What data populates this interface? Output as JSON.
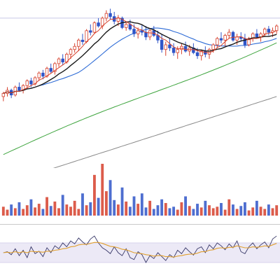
{
  "chart_data": [
    {
      "type": "candlestick",
      "panel": "price",
      "colors": {
        "up": "#d6402c",
        "down": "#2f55c8",
        "ma_fast": "#d6402c",
        "ma_mid": "#1a1a1a",
        "ma_slow": "#2d6bd6",
        "ma_long": "#3fa53f",
        "ma_longest": "#8a8a8a"
      },
      "grid": true,
      "ylim": [
        0,
        100
      ],
      "reference_line": 92,
      "candles": [
        [
          42,
          45,
          39,
          44
        ],
        [
          44,
          48,
          42,
          46
        ],
        [
          46,
          47,
          41,
          43
        ],
        [
          43,
          49,
          42,
          48
        ],
        [
          48,
          51,
          45,
          46
        ],
        [
          46,
          50,
          44,
          49
        ],
        [
          49,
          53,
          47,
          52
        ],
        [
          52,
          54,
          48,
          50
        ],
        [
          50,
          55,
          49,
          54
        ],
        [
          54,
          58,
          52,
          57
        ],
        [
          57,
          59,
          53,
          55
        ],
        [
          55,
          61,
          54,
          60
        ],
        [
          60,
          63,
          57,
          58
        ],
        [
          58,
          64,
          56,
          63
        ],
        [
          63,
          67,
          61,
          66
        ],
        [
          66,
          69,
          62,
          64
        ],
        [
          64,
          70,
          63,
          69
        ],
        [
          69,
          73,
          66,
          72
        ],
        [
          72,
          76,
          70,
          74
        ],
        [
          74,
          79,
          71,
          78
        ],
        [
          78,
          82,
          75,
          77
        ],
        [
          77,
          85,
          76,
          84
        ],
        [
          84,
          88,
          81,
          83
        ],
        [
          83,
          90,
          82,
          89
        ],
        [
          89,
          92,
          86,
          87
        ],
        [
          87,
          93,
          85,
          92
        ],
        [
          92,
          97,
          90,
          95
        ],
        [
          95,
          98,
          91,
          93
        ],
        [
          93,
          96,
          88,
          90
        ],
        [
          90,
          94,
          87,
          92
        ],
        [
          92,
          93,
          85,
          86
        ],
        [
          86,
          90,
          84,
          88
        ],
        [
          88,
          91,
          84,
          85
        ],
        [
          85,
          88,
          80,
          82
        ],
        [
          82,
          86,
          79,
          84
        ],
        [
          84,
          88,
          81,
          83
        ],
        [
          83,
          87,
          78,
          80
        ],
        [
          80,
          85,
          78,
          84
        ],
        [
          84,
          87,
          80,
          81
        ],
        [
          81,
          84,
          76,
          78
        ],
        [
          78,
          82,
          70,
          72
        ],
        [
          72,
          77,
          68,
          75
        ],
        [
          75,
          79,
          71,
          73
        ],
        [
          73,
          76,
          68,
          70
        ],
        [
          70,
          74,
          66,
          72
        ],
        [
          72,
          76,
          69,
          74
        ],
        [
          74,
          77,
          70,
          71
        ],
        [
          71,
          75,
          68,
          73
        ],
        [
          73,
          76,
          69,
          70
        ],
        [
          70,
          73,
          66,
          68
        ],
        [
          68,
          72,
          65,
          71
        ],
        [
          71,
          74,
          67,
          69
        ],
        [
          69,
          73,
          66,
          72
        ],
        [
          72,
          76,
          70,
          75
        ],
        [
          75,
          80,
          73,
          79
        ],
        [
          79,
          83,
          76,
          78
        ],
        [
          78,
          82,
          74,
          81
        ],
        [
          81,
          85,
          79,
          83
        ],
        [
          83,
          84,
          77,
          78
        ],
        [
          78,
          82,
          75,
          80
        ],
        [
          80,
          83,
          77,
          79
        ],
        [
          79,
          82,
          73,
          75
        ],
        [
          75,
          80,
          74,
          79
        ],
        [
          79,
          83,
          77,
          82
        ],
        [
          82,
          85,
          79,
          80
        ],
        [
          80,
          83,
          77,
          82
        ],
        [
          82,
          86,
          80,
          85
        ],
        [
          85,
          87,
          81,
          83
        ],
        [
          83,
          86,
          80,
          84
        ],
        [
          84,
          88,
          82,
          87
        ]
      ]
    },
    {
      "type": "bar",
      "panel": "volume",
      "values": [
        12,
        8,
        15,
        10,
        18,
        9,
        14,
        22,
        11,
        16,
        9,
        25,
        13,
        19,
        10,
        28,
        15,
        12,
        20,
        9,
        30,
        14,
        18,
        55,
        24,
        70,
        33,
        48,
        21,
        15,
        38,
        19,
        12,
        26,
        16,
        30,
        11,
        20,
        9,
        14,
        22,
        17,
        10,
        12,
        8,
        18,
        26,
        13,
        9,
        16,
        11,
        20,
        14,
        10,
        12,
        17,
        8,
        22,
        15,
        9,
        13,
        18,
        7,
        11,
        20,
        12,
        9,
        15,
        10,
        14
      ],
      "ylim": [
        0,
        70
      ]
    },
    {
      "type": "line",
      "panel": "oscillator",
      "colors": {
        "line": "#3a3a6a",
        "signal": "#e0a030",
        "band_fill": "#ece9f6"
      },
      "series": [
        {
          "values": [
            50,
            52,
            46,
            58,
            44,
            55,
            40,
            62,
            48,
            53,
            42,
            60,
            50,
            64,
            58,
            70,
            62,
            74,
            68,
            80,
            72,
            66,
            78,
            84,
            70,
            60,
            55,
            48,
            62,
            50,
            44,
            58,
            40,
            36,
            52,
            46,
            30,
            44,
            38,
            50,
            42,
            34,
            46,
            40,
            55,
            48,
            60,
            52,
            45,
            58,
            62,
            50,
            66,
            58,
            70,
            64,
            56,
            68,
            60,
            74,
            52,
            48,
            62,
            70,
            58,
            66,
            72,
            60,
            78,
            84
          ]
        },
        {
          "values": [
            50,
            51,
            50,
            52,
            50,
            52,
            50,
            53,
            52,
            52,
            51,
            53,
            53,
            55,
            56,
            58,
            59,
            62,
            63,
            66,
            67,
            67,
            69,
            71,
            71,
            69,
            66,
            63,
            62,
            60,
            57,
            56,
            53,
            50,
            49,
            48,
            46,
            45,
            43,
            44,
            44,
            42,
            42,
            41,
            43,
            44,
            46,
            47,
            47,
            49,
            52,
            52,
            55,
            56,
            59,
            60,
            59,
            61,
            61,
            64,
            62,
            60,
            60,
            62,
            61,
            62,
            64,
            63,
            66,
            69
          ]
        }
      ],
      "ylim": [
        0,
        100
      ],
      "band": [
        30,
        70
      ]
    }
  ]
}
